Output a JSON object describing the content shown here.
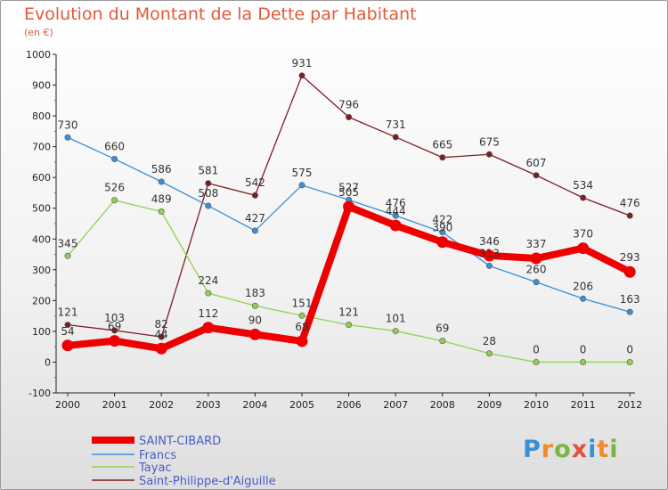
{
  "title": "Evolution du Montant de la Dette par Habitant",
  "subtitle": "(en €)",
  "logo_text": "Proxiti",
  "chart_data": {
    "type": "line",
    "title": "Evolution du Montant de la Dette par Habitant",
    "subtitle": "(en €)",
    "xlabel": "",
    "ylabel": "",
    "x": [
      "2000",
      "2001",
      "2002",
      "2003",
      "2004",
      "2005",
      "2006",
      "2007",
      "2008",
      "2009",
      "2010",
      "2011",
      "2012"
    ],
    "ylim": [
      -100,
      1000
    ],
    "yticks": [
      "-100",
      "0",
      "100",
      "200",
      "300",
      "400",
      "500",
      "600",
      "700",
      "800",
      "900",
      "1000"
    ],
    "grid": false,
    "legend_position": "bottom-left",
    "series": [
      {
        "name": "SAINT-CIBARD",
        "color": "#ee0000",
        "values": [
          54,
          69,
          44,
          112,
          90,
          68,
          505,
          444,
          390,
          346,
          337,
          370,
          293
        ],
        "labels": [
          "54",
          "69",
          "44",
          "112",
          "90",
          "68",
          "505",
          "444",
          "390",
          "346",
          "337",
          "370",
          "293"
        ]
      },
      {
        "name": "Francs",
        "color": "#3b8fd6",
        "values": [
          730,
          660,
          586,
          508,
          427,
          575,
          527,
          476,
          422,
          313,
          260,
          206,
          163
        ],
        "labels": [
          "730",
          "660",
          "586",
          "508",
          "427",
          "575",
          "527",
          "476",
          "422",
          "313",
          "260",
          "206",
          "163"
        ]
      },
      {
        "name": "Tayac",
        "color": "#8fd14f",
        "values": [
          345,
          526,
          489,
          224,
          183,
          151,
          121,
          101,
          69,
          28,
          0,
          0,
          0
        ],
        "labels": [
          "345",
          "526",
          "489",
          "224",
          "183",
          "151",
          "121",
          "101",
          "69",
          "28",
          "0",
          "0",
          "0"
        ]
      },
      {
        "name": "Saint-Philippe-d'Aiguille",
        "color": "#7a1f24",
        "values": [
          121,
          103,
          82,
          581,
          542,
          931,
          796,
          731,
          665,
          675,
          607,
          534,
          476
        ],
        "labels": [
          "121",
          "103",
          "82",
          "581",
          "542",
          "931",
          "796",
          "731",
          "665",
          "675",
          "607",
          "534",
          "476"
        ]
      }
    ]
  }
}
